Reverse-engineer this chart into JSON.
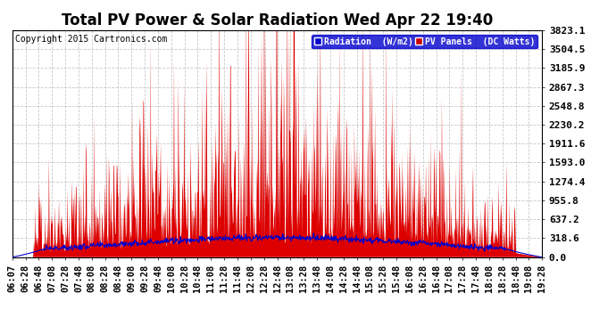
{
  "title": "Total PV Power & Solar Radiation Wed Apr 22 19:40",
  "copyright": "Copyright 2015 Cartronics.com",
  "ylim": [
    0,
    3823.1
  ],
  "yticks": [
    0.0,
    318.6,
    637.2,
    955.8,
    1274.4,
    1593.0,
    1911.6,
    2230.2,
    2548.8,
    2867.3,
    3185.9,
    3504.5,
    3823.1
  ],
  "legend_rad_label": "Radiation  (W/m2)",
  "legend_pv_label": "PV Panels  (DC Watts)",
  "legend_rad_color": "#0000cc",
  "legend_pv_color": "#cc0000",
  "bg_color": "#ffffff",
  "grid_color": "#bbbbbb",
  "pv_fill_color": "#dd0000",
  "rad_line_color": "#0000cc",
  "title_fontsize": 12,
  "tick_fontsize": 8,
  "copyright_fontsize": 7,
  "n_points": 1000,
  "xtick_labels": [
    "06:07",
    "06:28",
    "06:48",
    "07:08",
    "07:28",
    "07:48",
    "08:08",
    "08:28",
    "08:48",
    "09:08",
    "09:28",
    "09:48",
    "10:08",
    "10:28",
    "10:48",
    "11:08",
    "11:28",
    "11:48",
    "12:08",
    "12:28",
    "12:48",
    "13:08",
    "13:28",
    "13:48",
    "14:08",
    "14:28",
    "14:48",
    "15:08",
    "15:28",
    "15:48",
    "16:08",
    "16:28",
    "16:48",
    "17:08",
    "17:28",
    "17:48",
    "18:08",
    "18:28",
    "18:48",
    "19:08",
    "19:28"
  ]
}
